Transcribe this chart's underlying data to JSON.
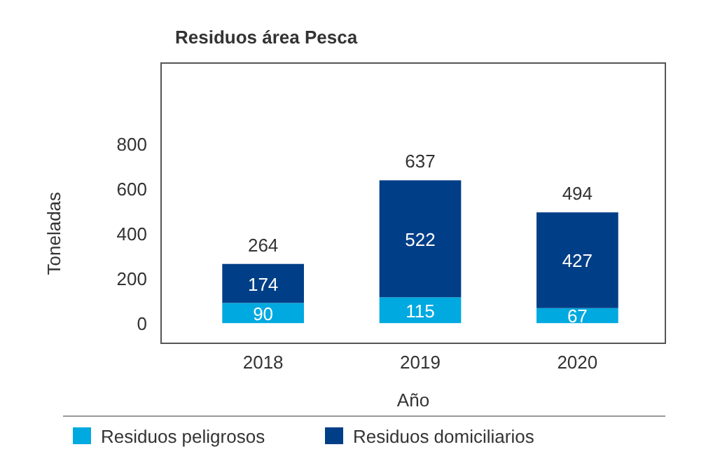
{
  "chart_data": {
    "type": "bar",
    "title": "Residuos área Pesca",
    "xlabel": "Año",
    "ylabel": "Toneladas",
    "categories": [
      "2018",
      "2019",
      "2020"
    ],
    "stacked": true,
    "data_labels": true,
    "totals": [
      "264",
      "637",
      "494"
    ],
    "series": [
      {
        "name": "Residuos peligrosos",
        "color": "#00a9e0",
        "values": [
          90,
          115,
          67
        ]
      },
      {
        "name": "Residuos domiciliarios",
        "color": "#003f87",
        "values": [
          174,
          522,
          427
        ]
      }
    ],
    "ylim": [
      -90,
      1160
    ],
    "yticks": [
      0,
      200,
      400,
      600,
      800
    ],
    "legend": "bottom"
  }
}
